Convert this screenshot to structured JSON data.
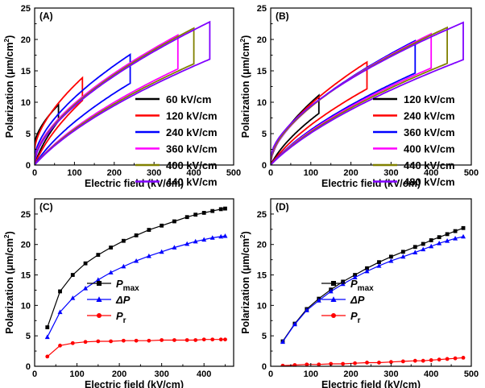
{
  "chart_data": [
    {
      "panel": "(A)",
      "type": "line",
      "xlabel": "Electric field (kV/cm)",
      "ylabel": "Polarization (μm/cm²)",
      "xlim": [
        0,
        500
      ],
      "ylim": [
        0,
        25
      ],
      "xticks": [
        0,
        100,
        200,
        300,
        400,
        500
      ],
      "yticks": [
        0,
        5,
        10,
        15,
        20,
        25
      ],
      "legend_position": "right",
      "series": [
        {
          "name": "60 kV/cm",
          "color": "#000000",
          "emax": 60,
          "pmax": 9.6,
          "pr": 3.3
        },
        {
          "name": "120 kV/cm",
          "color": "#ff0000",
          "emax": 120,
          "pmax": 13.9,
          "pr": 2.4
        },
        {
          "name": "240 kV/cm",
          "color": "#0000ff",
          "emax": 240,
          "pmax": 17.6,
          "pr": 1.2
        },
        {
          "name": "360 kV/cm",
          "color": "#ff00ff",
          "emax": 360,
          "pmax": 20.7,
          "pr": 0.8
        },
        {
          "name": "400 kV/cm",
          "color": "#808000",
          "emax": 400,
          "pmax": 21.8,
          "pr": 0.6
        },
        {
          "name": "440 kV/cm",
          "color": "#8000ff",
          "emax": 440,
          "pmax": 22.8,
          "pr": 0.5
        }
      ]
    },
    {
      "panel": "(B)",
      "type": "line",
      "xlabel": "Electric field (kV/cm)",
      "ylabel": "Polarization (μm/cm²)",
      "xlim": [
        0,
        500
      ],
      "ylim": [
        0,
        25
      ],
      "xticks": [
        0,
        100,
        200,
        300,
        400,
        500
      ],
      "yticks": [
        0,
        5,
        10,
        15,
        20,
        25
      ],
      "legend_position": "right",
      "series": [
        {
          "name": "120 kV/cm",
          "color": "#000000",
          "emax": 120,
          "pmax": 11.1,
          "pr": 0.3
        },
        {
          "name": "240 kV/cm",
          "color": "#ff0000",
          "emax": 240,
          "pmax": 16.4,
          "pr": 0.4
        },
        {
          "name": "360 kV/cm",
          "color": "#0000ff",
          "emax": 360,
          "pmax": 19.8,
          "pr": 0.6
        },
        {
          "name": "400 kV/cm",
          "color": "#ff00ff",
          "emax": 400,
          "pmax": 20.9,
          "pr": 0.7
        },
        {
          "name": "440 kV/cm",
          "color": "#808000",
          "emax": 440,
          "pmax": 21.9,
          "pr": 0.9
        },
        {
          "name": "480 kV/cm",
          "color": "#8000ff",
          "emax": 480,
          "pmax": 22.7,
          "pr": 1.3
        }
      ]
    },
    {
      "panel": "(C)",
      "type": "line",
      "xlabel": "Electric field (kV/cm)",
      "ylabel": "Polarization (μm/cm²)",
      "xlim": [
        0,
        470
      ],
      "ylim": [
        0,
        27.5
      ],
      "xticks": [
        0,
        100,
        200,
        300,
        400
      ],
      "yticks": [
        0,
        5,
        10,
        15,
        20,
        25
      ],
      "legend_position": "center-left",
      "x": [
        30,
        60,
        90,
        120,
        150,
        180,
        210,
        240,
        270,
        300,
        330,
        360,
        380,
        400,
        420,
        440,
        450
      ],
      "series": [
        {
          "name": "Pmax",
          "legend_main": "P",
          "legend_sub": "max",
          "marker": "square",
          "color": "#000000",
          "values": [
            6.4,
            12.3,
            15.0,
            16.9,
            18.3,
            19.5,
            20.6,
            21.5,
            22.4,
            23.1,
            23.8,
            24.5,
            24.9,
            25.2,
            25.5,
            25.8,
            25.9
          ]
        },
        {
          "name": "ΔP",
          "legend_main": "ΔP",
          "legend_sub": "",
          "marker": "triangle",
          "color": "#0000ff",
          "values": [
            4.8,
            8.9,
            11.2,
            12.8,
            14.2,
            15.4,
            16.4,
            17.3,
            18.1,
            18.8,
            19.5,
            20.1,
            20.5,
            20.8,
            21.1,
            21.3,
            21.4
          ]
        },
        {
          "name": "Pr",
          "legend_main": "P",
          "legend_sub": "r",
          "marker": "circle",
          "color": "#ff0000",
          "values": [
            1.6,
            3.4,
            3.8,
            4.0,
            4.1,
            4.1,
            4.2,
            4.2,
            4.2,
            4.3,
            4.3,
            4.3,
            4.3,
            4.4,
            4.4,
            4.4,
            4.4
          ]
        }
      ]
    },
    {
      "panel": "(D)",
      "type": "line",
      "xlabel": "Electric field (kV/cm)",
      "ylabel": "Polarization (μm/cm²)",
      "xlim": [
        0,
        500
      ],
      "ylim": [
        0,
        27.5
      ],
      "xticks": [
        0,
        100,
        200,
        300,
        400,
        500
      ],
      "yticks": [
        0,
        5,
        10,
        15,
        20,
        25
      ],
      "legend_position": "center-left",
      "x": [
        30,
        60,
        90,
        120,
        150,
        180,
        210,
        240,
        270,
        300,
        330,
        360,
        380,
        400,
        420,
        440,
        460,
        480
      ],
      "series": [
        {
          "name": "Pmax",
          "legend_main": "P",
          "legend_sub": "max",
          "marker": "square",
          "color": "#000000",
          "values": [
            4.1,
            7.0,
            9.4,
            11.1,
            12.6,
            13.9,
            15.0,
            16.1,
            17.1,
            18.0,
            18.8,
            19.6,
            20.1,
            20.7,
            21.2,
            21.7,
            22.2,
            22.7
          ]
        },
        {
          "name": "ΔP",
          "legend_main": "ΔP",
          "legend_sub": "",
          "marker": "triangle",
          "color": "#0000ff",
          "values": [
            4.0,
            6.9,
            9.2,
            10.8,
            12.3,
            13.5,
            14.6,
            15.6,
            16.5,
            17.3,
            18.0,
            18.7,
            19.2,
            19.7,
            20.2,
            20.6,
            21.0,
            21.3
          ]
        },
        {
          "name": "Pr",
          "legend_main": "P",
          "legend_sub": "r",
          "marker": "circle",
          "color": "#ff0000",
          "values": [
            0.1,
            0.2,
            0.3,
            0.3,
            0.4,
            0.4,
            0.5,
            0.6,
            0.6,
            0.7,
            0.8,
            0.9,
            0.9,
            1.0,
            1.1,
            1.2,
            1.3,
            1.4
          ]
        }
      ]
    }
  ]
}
